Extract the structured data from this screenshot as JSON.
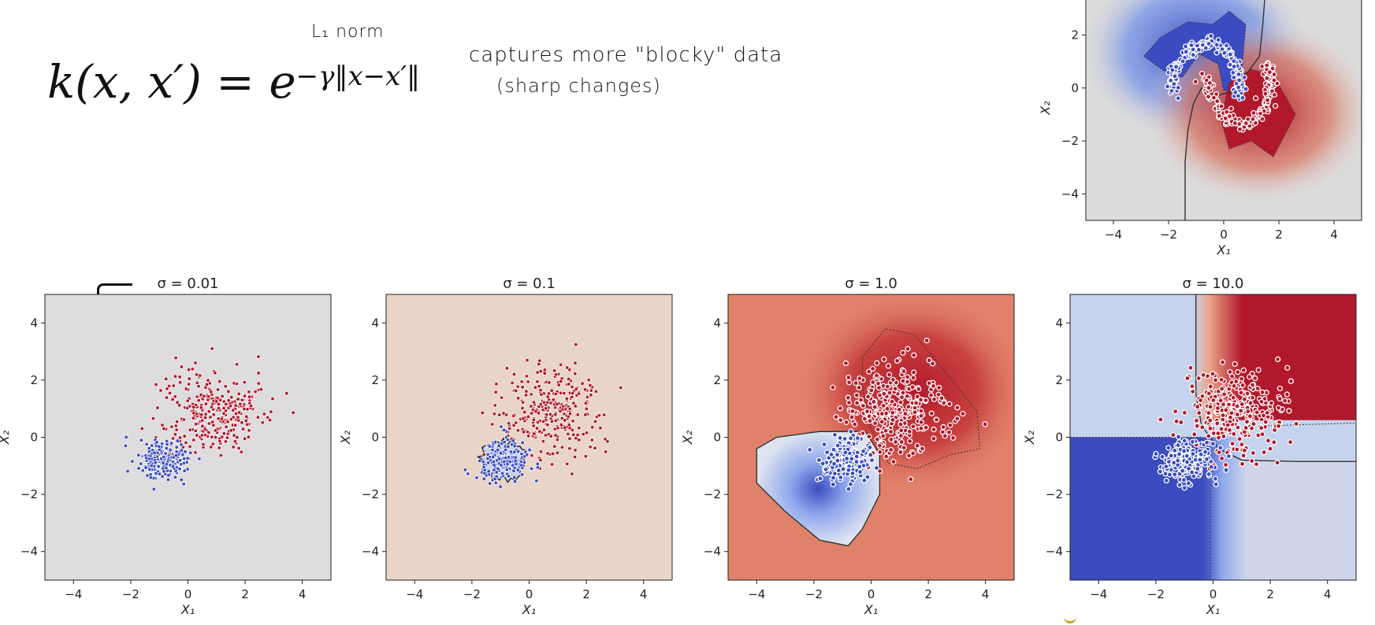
{
  "formula": {
    "lhs": "k(x, x′) = e",
    "exponent": "−γ‖x−x′‖"
  },
  "annotations": {
    "l1_norm": "L₁ norm",
    "blocky": "captures more \"blocky\" data",
    "sharp": "(sharp changes)"
  },
  "chart_data": [
    {
      "type": "scatter",
      "title": "",
      "xlabel": "X₁",
      "ylabel": "X₂",
      "xlim": [
        -5,
        5
      ],
      "ylim": [
        -5,
        3.5
      ],
      "xticks": [
        -4,
        -2,
        0,
        2,
        4
      ],
      "yticks": [
        -4,
        -2,
        0,
        2
      ],
      "dataset": "moons",
      "series": [
        {
          "class": "blue",
          "description_points": [
            [
              -1.8,
              -0.2
            ],
            [
              -1.9,
              0.3
            ],
            [
              -1.7,
              0.8
            ],
            [
              -1.3,
              1.3
            ],
            [
              -0.9,
              1.6
            ],
            [
              -0.4,
              1.7
            ],
            [
              0.0,
              1.5
            ],
            [
              0.3,
              1.1
            ],
            [
              0.5,
              0.6
            ],
            [
              0.6,
              0.0
            ],
            [
              0.5,
              -0.3
            ]
          ]
        },
        {
          "class": "red",
          "description_points": [
            [
              -0.7,
              0.4
            ],
            [
              -0.5,
              -0.2
            ],
            [
              -0.2,
              -0.8
            ],
            [
              0.2,
              -1.2
            ],
            [
              0.7,
              -1.4
            ],
            [
              1.1,
              -1.2
            ],
            [
              1.5,
              -0.7
            ],
            [
              1.7,
              -0.1
            ],
            [
              1.7,
              0.5
            ],
            [
              1.6,
              0.8
            ]
          ]
        }
      ]
    },
    {
      "type": "scatter",
      "title": "σ = 0.01",
      "xlabel": "X₁",
      "ylabel": "X₂",
      "xlim": [
        -5,
        5
      ],
      "ylim": [
        -5,
        5
      ],
      "xticks": [
        -4,
        -2,
        0,
        2,
        4
      ],
      "yticks": [
        -4,
        -2,
        0,
        2,
        4
      ],
      "background": "#dedcdc",
      "clusters": [
        {
          "class": "red",
          "center": [
            0.8,
            0.9
          ],
          "spread": [
            0.9,
            0.75
          ]
        },
        {
          "class": "blue",
          "center": [
            -0.9,
            -0.8
          ],
          "spread": [
            0.45,
            0.35
          ]
        }
      ]
    },
    {
      "type": "scatter",
      "title": "σ = 0.1",
      "xlabel": "X₁",
      "ylabel": "X₂",
      "xlim": [
        -5,
        5
      ],
      "ylim": [
        -5,
        5
      ],
      "xticks": [
        -4,
        -2,
        0,
        2,
        4
      ],
      "yticks": [
        -4,
        -2,
        0,
        2,
        4
      ],
      "background": "#e8d5c8",
      "clusters": [
        {
          "class": "red",
          "center": [
            0.8,
            0.9
          ],
          "spread": [
            0.9,
            0.75
          ]
        },
        {
          "class": "blue",
          "center": [
            -0.9,
            -0.8
          ],
          "spread": [
            0.45,
            0.35
          ]
        }
      ]
    },
    {
      "type": "scatter",
      "title": "σ = 1.0",
      "xlabel": "X₁",
      "ylabel": "X₂",
      "xlim": [
        -5,
        5
      ],
      "ylim": [
        -5,
        5
      ],
      "xticks": [
        -4,
        -2,
        0,
        2,
        4
      ],
      "yticks": [
        -4,
        -2,
        0,
        2,
        4
      ],
      "clusters": [
        {
          "class": "red",
          "center": [
            0.8,
            0.9
          ],
          "spread": [
            0.9,
            0.75
          ]
        },
        {
          "class": "blue",
          "center": [
            -0.9,
            -0.8
          ],
          "spread": [
            0.45,
            0.35
          ]
        }
      ]
    },
    {
      "type": "scatter",
      "title": "σ = 10.0",
      "xlabel": "X₁",
      "ylabel": "X₂",
      "xlim": [
        -5,
        5
      ],
      "ylim": [
        -5,
        5
      ],
      "xticks": [
        -4,
        -2,
        0,
        2,
        4
      ],
      "yticks": [
        -4,
        -2,
        0,
        2,
        4
      ],
      "clusters": [
        {
          "class": "red",
          "center": [
            0.8,
            0.9
          ],
          "spread": [
            0.9,
            0.75
          ]
        },
        {
          "class": "blue",
          "center": [
            -0.9,
            -0.8
          ],
          "spread": [
            0.45,
            0.35
          ]
        }
      ]
    }
  ],
  "colors": {
    "red": "#b2182b",
    "blue": "#3b4cc0",
    "neutral": "#dcdcdc"
  }
}
